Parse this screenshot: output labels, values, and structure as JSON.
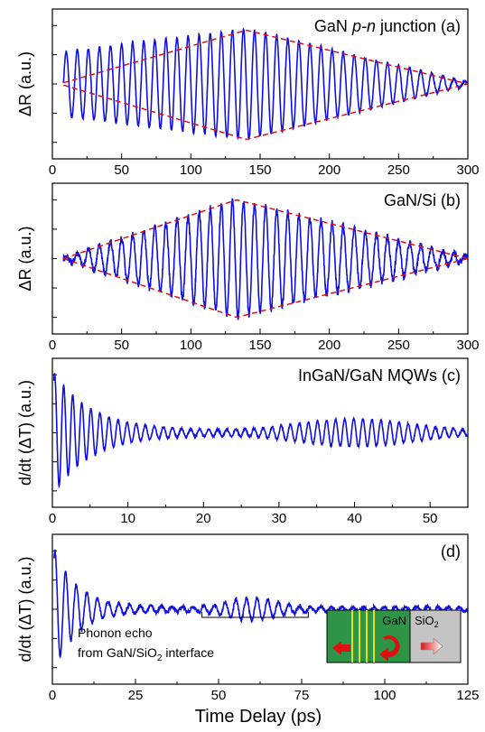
{
  "colors": {
    "signal": "#1010e0",
    "envelope": "#e01010",
    "axis": "#000000"
  },
  "xlabel": "Time Delay (ps)",
  "chart_data": [
    {
      "id": "a",
      "type": "line",
      "label": "GaN p-n junction (a)",
      "label_parts": {
        "prefix": "GaN ",
        "italic": "p-n",
        "suffix": " junction (a)"
      },
      "ylabel": "ΔR (a.u.)",
      "xlim": [
        0,
        300
      ],
      "xticks": [
        "0",
        "50",
        "100",
        "150",
        "200",
        "250",
        "300"
      ],
      "xtick_values": [
        0,
        50,
        100,
        150,
        200,
        250,
        300
      ],
      "signal": {
        "x_start": 8,
        "x_end": 300,
        "period_ps": 8,
        "amp_start": 0.55,
        "amp_peak": 0.95,
        "peak_x": 140,
        "amp_end": 0.03,
        "noise": 0.02
      },
      "envelope": {
        "points": [
          [
            8,
            0.02
          ],
          [
            140,
            0.92
          ],
          [
            300,
            0.0
          ]
        ],
        "lower": [
          [
            8,
            -0.02
          ],
          [
            140,
            -0.95
          ],
          [
            300,
            0.0
          ]
        ],
        "style": "dashed"
      }
    },
    {
      "id": "b",
      "type": "line",
      "label": "GaN/Si (b)",
      "ylabel": "ΔR (a.u.)",
      "xlim": [
        0,
        300
      ],
      "xticks": [
        "0",
        "50",
        "100",
        "150",
        "200",
        "250",
        "300"
      ],
      "xtick_values": [
        0,
        50,
        100,
        150,
        200,
        250,
        300
      ],
      "signal": {
        "x_start": 8,
        "x_end": 300,
        "period_ps": 8,
        "amp_start": 0.02,
        "amp_peak": 1.0,
        "peak_x": 133,
        "amp_end": 0.03,
        "noise": 0.06
      },
      "envelope": {
        "points": [
          [
            8,
            0.0
          ],
          [
            133,
            1.0
          ],
          [
            300,
            0.0
          ]
        ],
        "lower": [
          [
            8,
            0.0
          ],
          [
            133,
            -1.0
          ],
          [
            300,
            0.0
          ]
        ],
        "style": "dashed"
      }
    },
    {
      "id": "c",
      "type": "line",
      "label": "InGaN/GaN MQWs (c)",
      "ylabel": "d/dt (ΔT) (a.u.)",
      "xlim": [
        0,
        55
      ],
      "xticks": [
        "0",
        "10",
        "20",
        "30",
        "40",
        "50"
      ],
      "xtick_values": [
        0,
        10,
        20,
        30,
        40,
        50
      ],
      "signal": {
        "x_start": 0.2,
        "x_end": 55,
        "period_ps": 1.2,
        "amp_start": 1.0,
        "decay_ps": 5,
        "echo_center": 40,
        "echo_amp": 0.2,
        "echo_width": 10,
        "noise": 0.015
      }
    },
    {
      "id": "d",
      "type": "line",
      "label": "(d)",
      "ylabel": "d/dt (ΔT) (a.u.)",
      "xlim": [
        0,
        125
      ],
      "xticks": [
        "0",
        "25",
        "50",
        "75",
        "100",
        "125"
      ],
      "xtick_values": [
        0,
        25,
        50,
        75,
        100,
        125
      ],
      "signal": {
        "x_start": 0.5,
        "x_end": 125,
        "period_ps": 3.2,
        "amp_start": 1.0,
        "decay_ps": 7,
        "echo_center": 60,
        "echo_amp": 0.15,
        "echo_width": 10,
        "noise": 0.03
      },
      "annotation": {
        "line1": "Phonon echo",
        "line2_prefix": "from GaN/SiO",
        "line2_sub": "2",
        "line2_suffix": " interface",
        "bracket": [
          45,
          77
        ]
      },
      "inset": {
        "left_label": "GaN",
        "right_label_prefix": "SiO",
        "right_label_sub": "2",
        "left_color": "#2e9448",
        "right_color": "#c4c4c4",
        "stripe_color": "#e0e020"
      }
    }
  ]
}
